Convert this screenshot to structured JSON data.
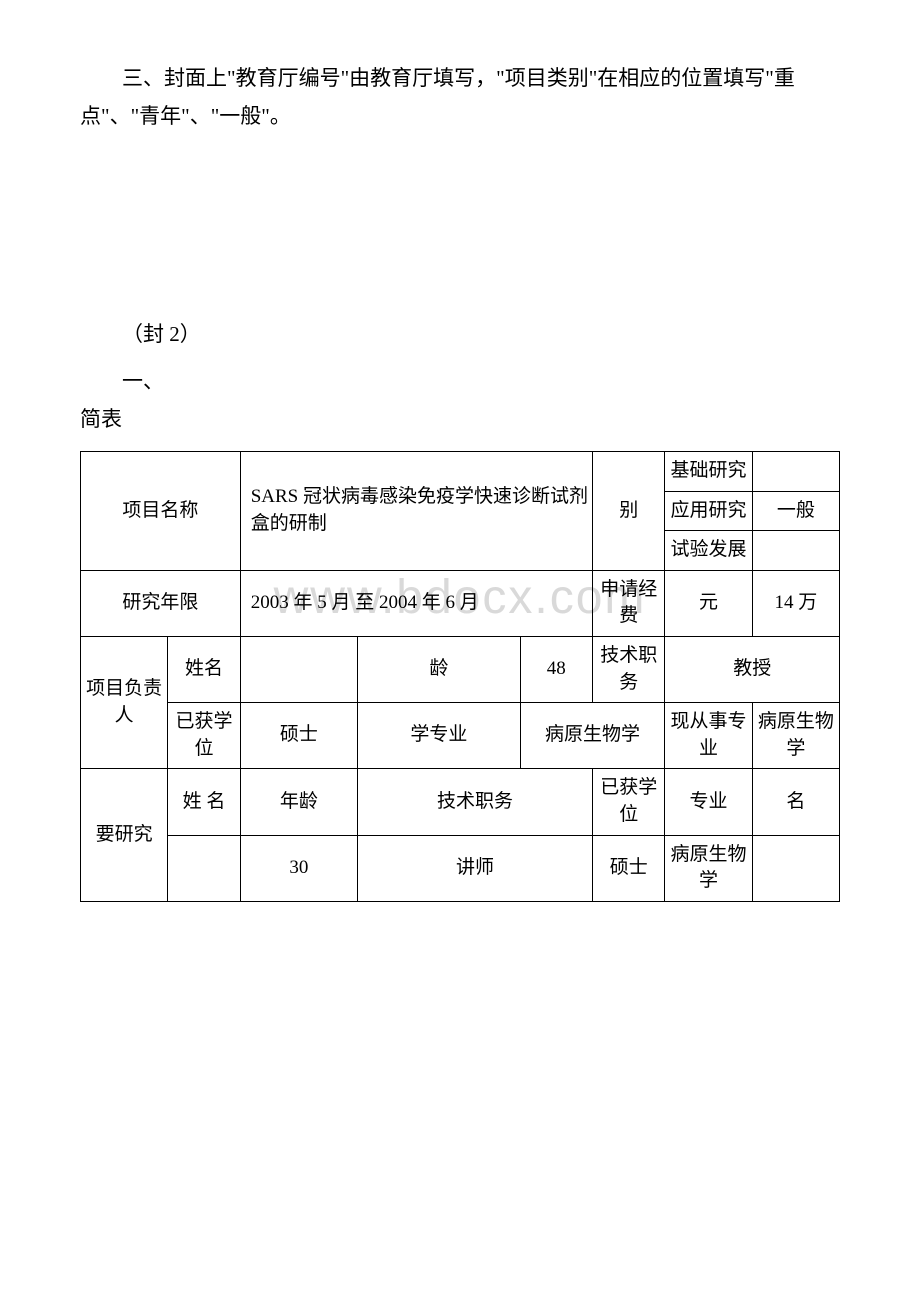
{
  "page": {
    "paragraph1": "三、封面上\"教育厅编号\"由教育厅填写，\"项目类别\"在相应的位置填写\"重点\"、\"青年\"、\"一般\"。",
    "paragraph2": "（封 2）",
    "paragraph3a": "一、",
    "paragraph3b": "简表",
    "watermark": "www.bdocx.com"
  },
  "table": {
    "row1": {
      "project_name_label": "项目名称",
      "project_name_value": "SARS 冠状病毒感染免疫学快速诊断试剂盒的研制",
      "category_label": "别",
      "category_option1": "基础研究",
      "category_option2": "应用研究",
      "category_option3": "试验发展",
      "category_selected": "一般"
    },
    "row2": {
      "duration_label": "研究年限",
      "duration_value": "2003 年 5 月 至 2004 年 6 月",
      "budget_label": "申请经费",
      "budget_unit": "元",
      "budget_value": "14 万"
    },
    "row3": {
      "leader_label": "项目负责人",
      "name_label": "姓名",
      "name_value": "",
      "age_label": "龄",
      "age_value": "48",
      "title_label": "技术职务",
      "title_value": "教授",
      "degree_label": "已获学位",
      "degree_value": "硕士",
      "major_label": "学专业",
      "major_value": "病原生物学",
      "current_label": "现从事专业",
      "current_value": "病原生物学"
    },
    "row4": {
      "group_label": "要研究",
      "name_label": "姓 名",
      "age_label": "年龄",
      "title_label": "技术职务",
      "degree_label": "已获学位",
      "major_label": "专业",
      "sign_label": "名",
      "r1_name": "",
      "r1_age": "30",
      "r1_title": "讲师",
      "r1_degree": "硕士",
      "r1_major": "病原生物学",
      "r1_sign": ""
    }
  },
  "style": {
    "font_size_body": 21,
    "font_size_table": 19,
    "watermark_color": "#d9d9d9",
    "text_color": "#000000",
    "background_color": "#ffffff",
    "border_color": "#000000"
  }
}
